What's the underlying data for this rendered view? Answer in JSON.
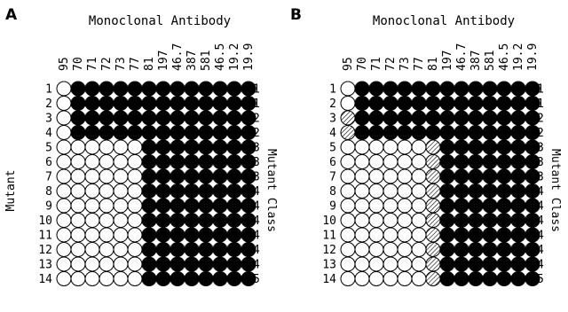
{
  "chart_data": [
    {
      "type": "heatmap",
      "panel": "A",
      "title": "Monoclonal Antibody",
      "ylabel": "Mutant",
      "y2label": "Mutant Class",
      "antibodies": [
        "95",
        "70",
        "71",
        "72",
        "73",
        "77",
        "81",
        "197",
        "46.7",
        "387",
        "581",
        "46.5",
        "19.2",
        "19.9"
      ],
      "mutants": [
        "1",
        "2",
        "3",
        "4",
        "5",
        "6",
        "7",
        "8",
        "9",
        "10",
        "11",
        "12",
        "13",
        "14"
      ],
      "mutant_class": [
        "1",
        "1",
        "2",
        "2",
        "3",
        "3",
        "3",
        "4",
        "4",
        "4",
        "4",
        "4",
        "4",
        "5"
      ],
      "legend": {
        "O": "open (unfilled) circle",
        "F": "filled circle",
        "H": "hatched circle"
      },
      "cells": [
        "OFFFFFFFFFFFFF",
        "OFFFFFFFFFFFFF",
        "OFFFFFFFFFFFFF",
        "OFFFFFFFFFFFFF",
        "OOOOOOFFFFFFFF",
        "OOOOOOFFFFFFFF",
        "OOOOOOFFFFFFFF",
        "OOOOOOFFFFFFFF",
        "OOOOOOFFFFFFFF",
        "OOOOOOFFFFFFFF",
        "OOOOOOFFFFFFFF",
        "OOOOOOFFFFFFFF",
        "OOOOOOFFFFFFFF",
        "OOOOOOFFFFFFFF"
      ]
    },
    {
      "type": "heatmap",
      "panel": "B",
      "title": "Monoclonal Antibody",
      "ylabel": "",
      "y2label": "Mutant Class",
      "antibodies": [
        "95",
        "70",
        "71",
        "72",
        "73",
        "77",
        "81",
        "197",
        "46.7",
        "387",
        "581",
        "46.5",
        "19.2",
        "19.9"
      ],
      "mutants": [
        "1",
        "2",
        "3",
        "4",
        "5",
        "6",
        "7",
        "8",
        "9",
        "10",
        "11",
        "12",
        "13",
        "14"
      ],
      "mutant_class": [
        "1",
        "1",
        "2",
        "2",
        "3",
        "3",
        "3",
        "4",
        "4",
        "4",
        "4",
        "4",
        "4",
        "5"
      ],
      "legend": {
        "O": "open (unfilled) circle",
        "F": "filled circle",
        "H": "hatched circle"
      },
      "cells": [
        "OFFFFFFFFFFFFF",
        "OFFFFFFFFFFFFF",
        "HFFFFFFFFFFFFF",
        "HFFFFFFFFFFFFF",
        "OOOOOOHFFFFFFF",
        "OOOOOOHFFFFFFF",
        "OOOOOOHFFFFFFF",
        "OOOOOOHFFFFFFF",
        "OOOOOOHFFFFFFF",
        "OOOOOOHFFFFFFF",
        "OOOOOOHFFFFFFF",
        "OOOOOOHFFFFFFF",
        "OOOOOOHFFFFFFF",
        "OOOOOOHFFFFFFF"
      ]
    }
  ],
  "colors": {
    "ink": "#000000",
    "paper": "#ffffff"
  }
}
